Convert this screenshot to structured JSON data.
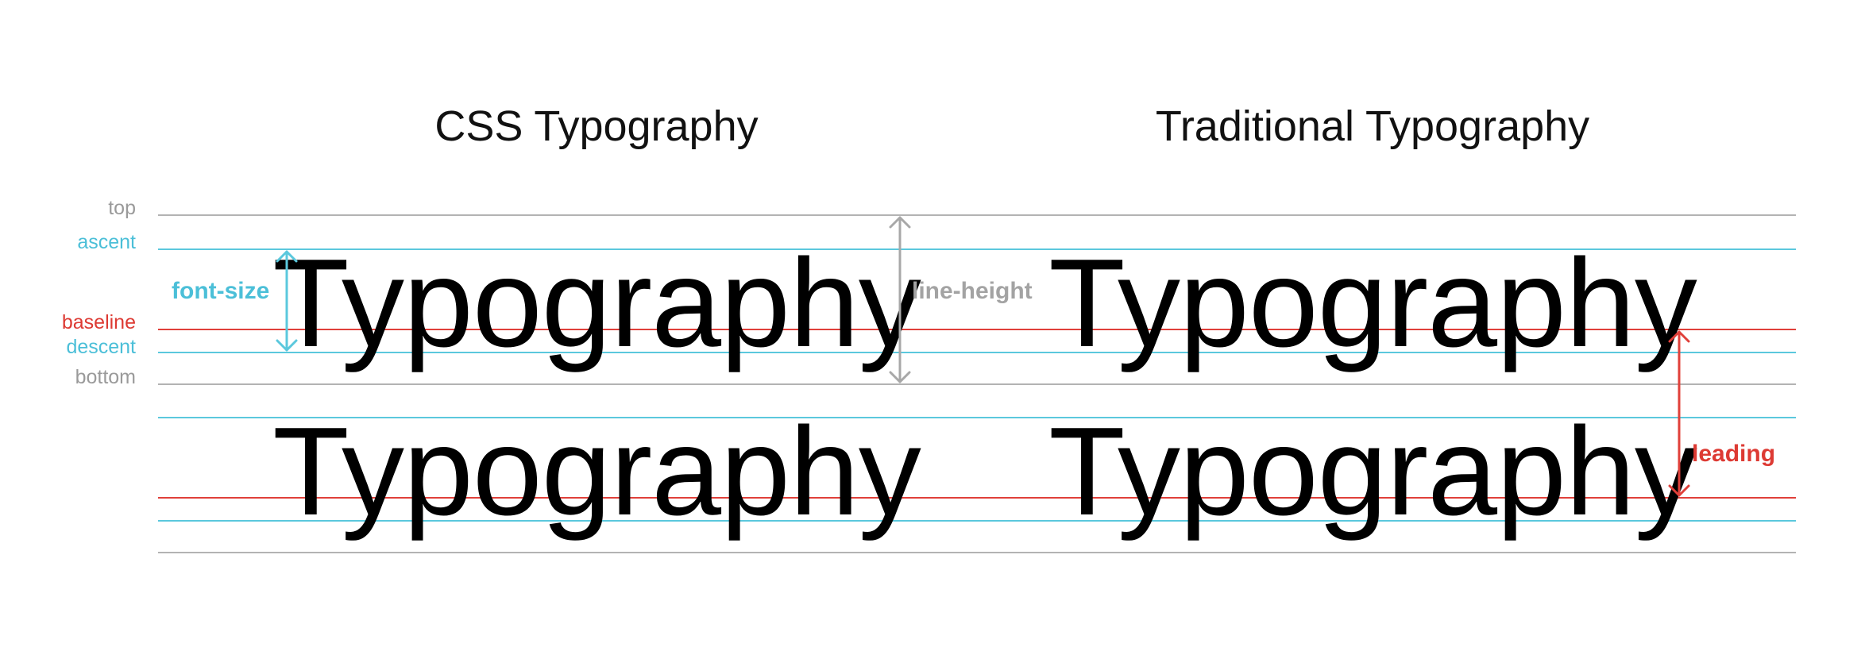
{
  "titles": {
    "css": "CSS Typography",
    "traditional": "Traditional Typography"
  },
  "metric_labels": {
    "top": "top",
    "ascent": "ascent",
    "baseline": "baseline",
    "descent": "descent",
    "bottom": "bottom"
  },
  "sample_text": {
    "css_line1": "Typography",
    "css_line2": "Typography",
    "trad_line1": "Typography",
    "trad_line2": "Typography"
  },
  "annotations": {
    "font_size": "font-size",
    "line_height": "line-height",
    "leading": "leading"
  },
  "colors": {
    "gray": "#b3b3b3",
    "cyan": "#5bc8dd",
    "red": "#e0403a",
    "text": "#000000"
  }
}
